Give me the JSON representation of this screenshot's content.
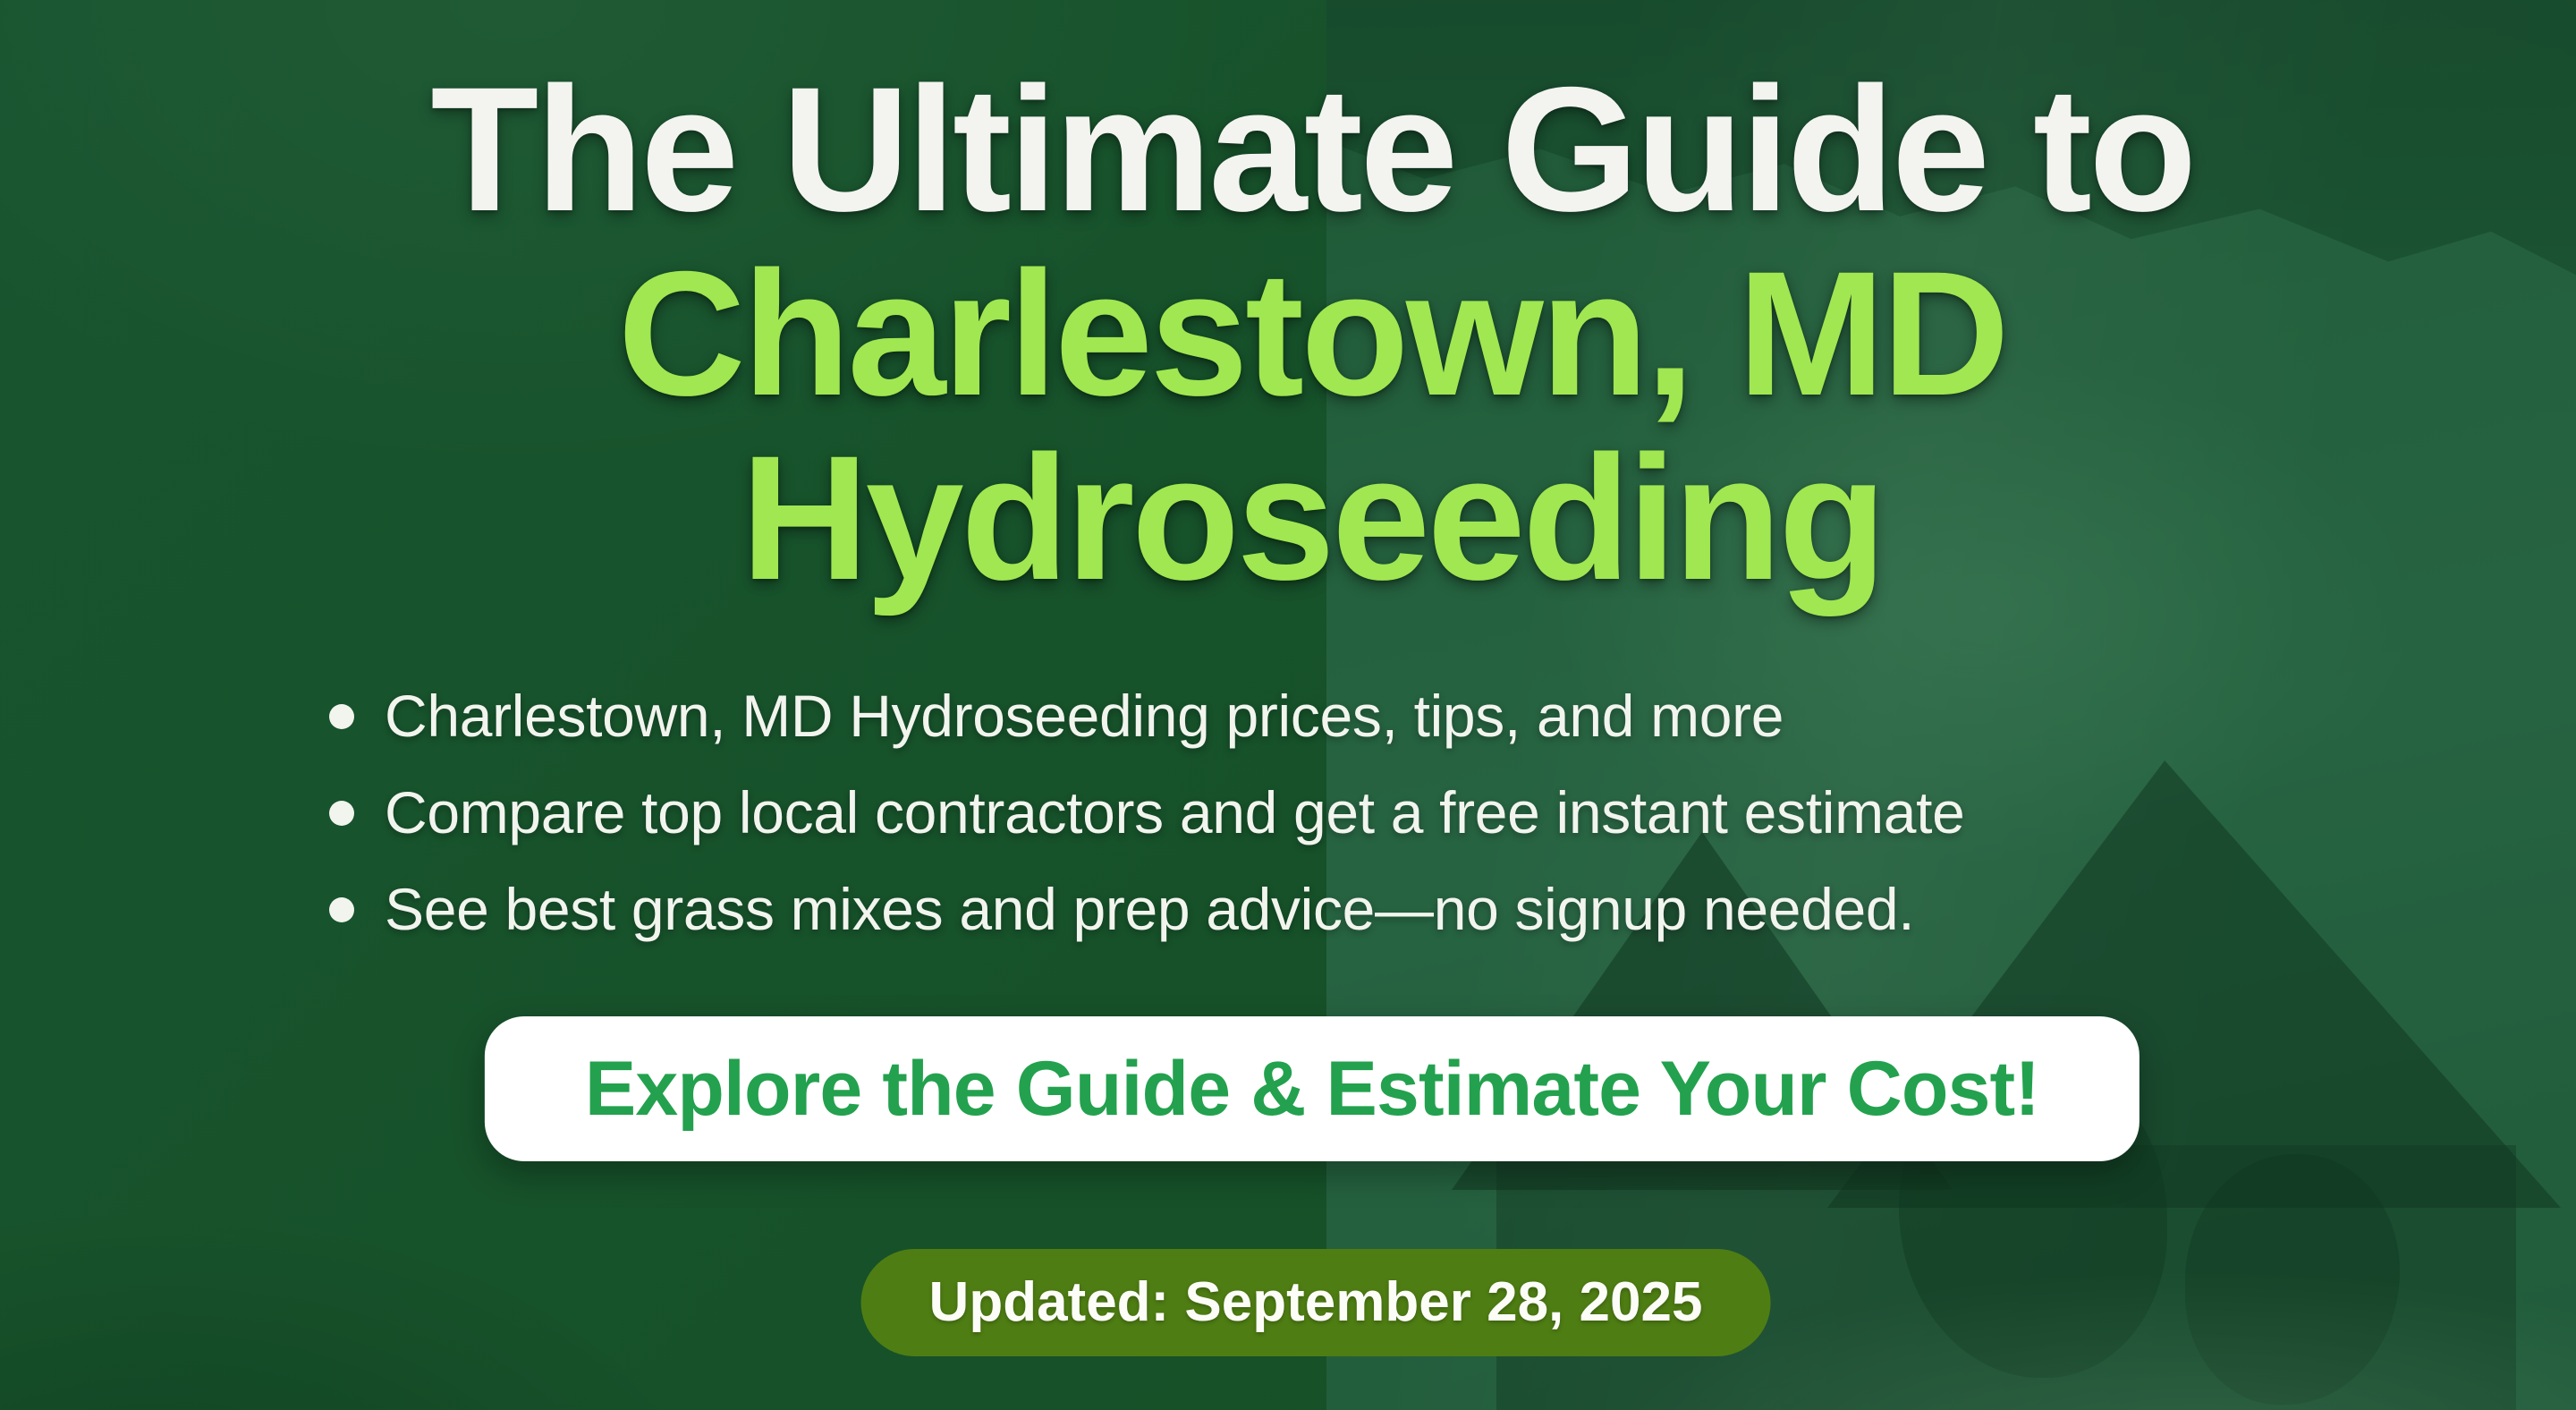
{
  "hero": {
    "title_line1": "The Ultimate Guide to",
    "title_line2": "Charlestown, MD",
    "title_line3": "Hydroseeding",
    "bullets": [
      "Charlestown, MD Hydroseeding prices, tips, and more",
      "Compare top local contractors and get a free instant estimate",
      "See best grass mixes and prep advice—no signup needed."
    ],
    "cta_label": "Explore the Guide & Estimate Your Cost!",
    "updated_label": "Updated: September 28, 2025",
    "colors": {
      "background_green": "#165129",
      "photo_tint_green": "#2c6a47",
      "accent_lime": "#a0e751",
      "title_white": "#f3f4ef",
      "cta_background": "#ffffff",
      "cta_text_green": "#23a14e",
      "badge_olive": "#4e7d13",
      "badge_text": "#fdfdf8"
    }
  }
}
